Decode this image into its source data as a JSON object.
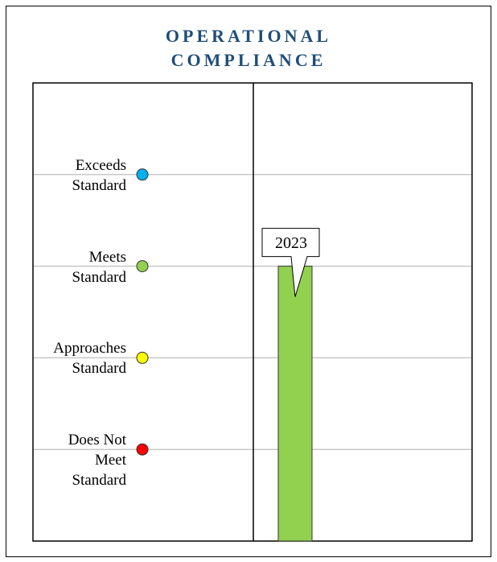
{
  "chart_data": {
    "type": "bar",
    "title": "OPERATIONAL COMPLIANCE",
    "title_color": "#1f4e79",
    "categories": [
      "2023"
    ],
    "values": [
      3
    ],
    "color": "#92d050",
    "ylim": [
      0,
      5
    ],
    "yticks": [
      {
        "value": 1,
        "label": "Does Not Meet Standard"
      },
      {
        "value": 2,
        "label": "Approaches Standard"
      },
      {
        "value": 3,
        "label": "Meets Standard"
      },
      {
        "value": 4,
        "label": "Exceeds Standard"
      }
    ],
    "tick_colors": [
      "#ff0000",
      "#ffff00",
      "#92d050",
      "#00b0f0"
    ],
    "grid": true
  }
}
